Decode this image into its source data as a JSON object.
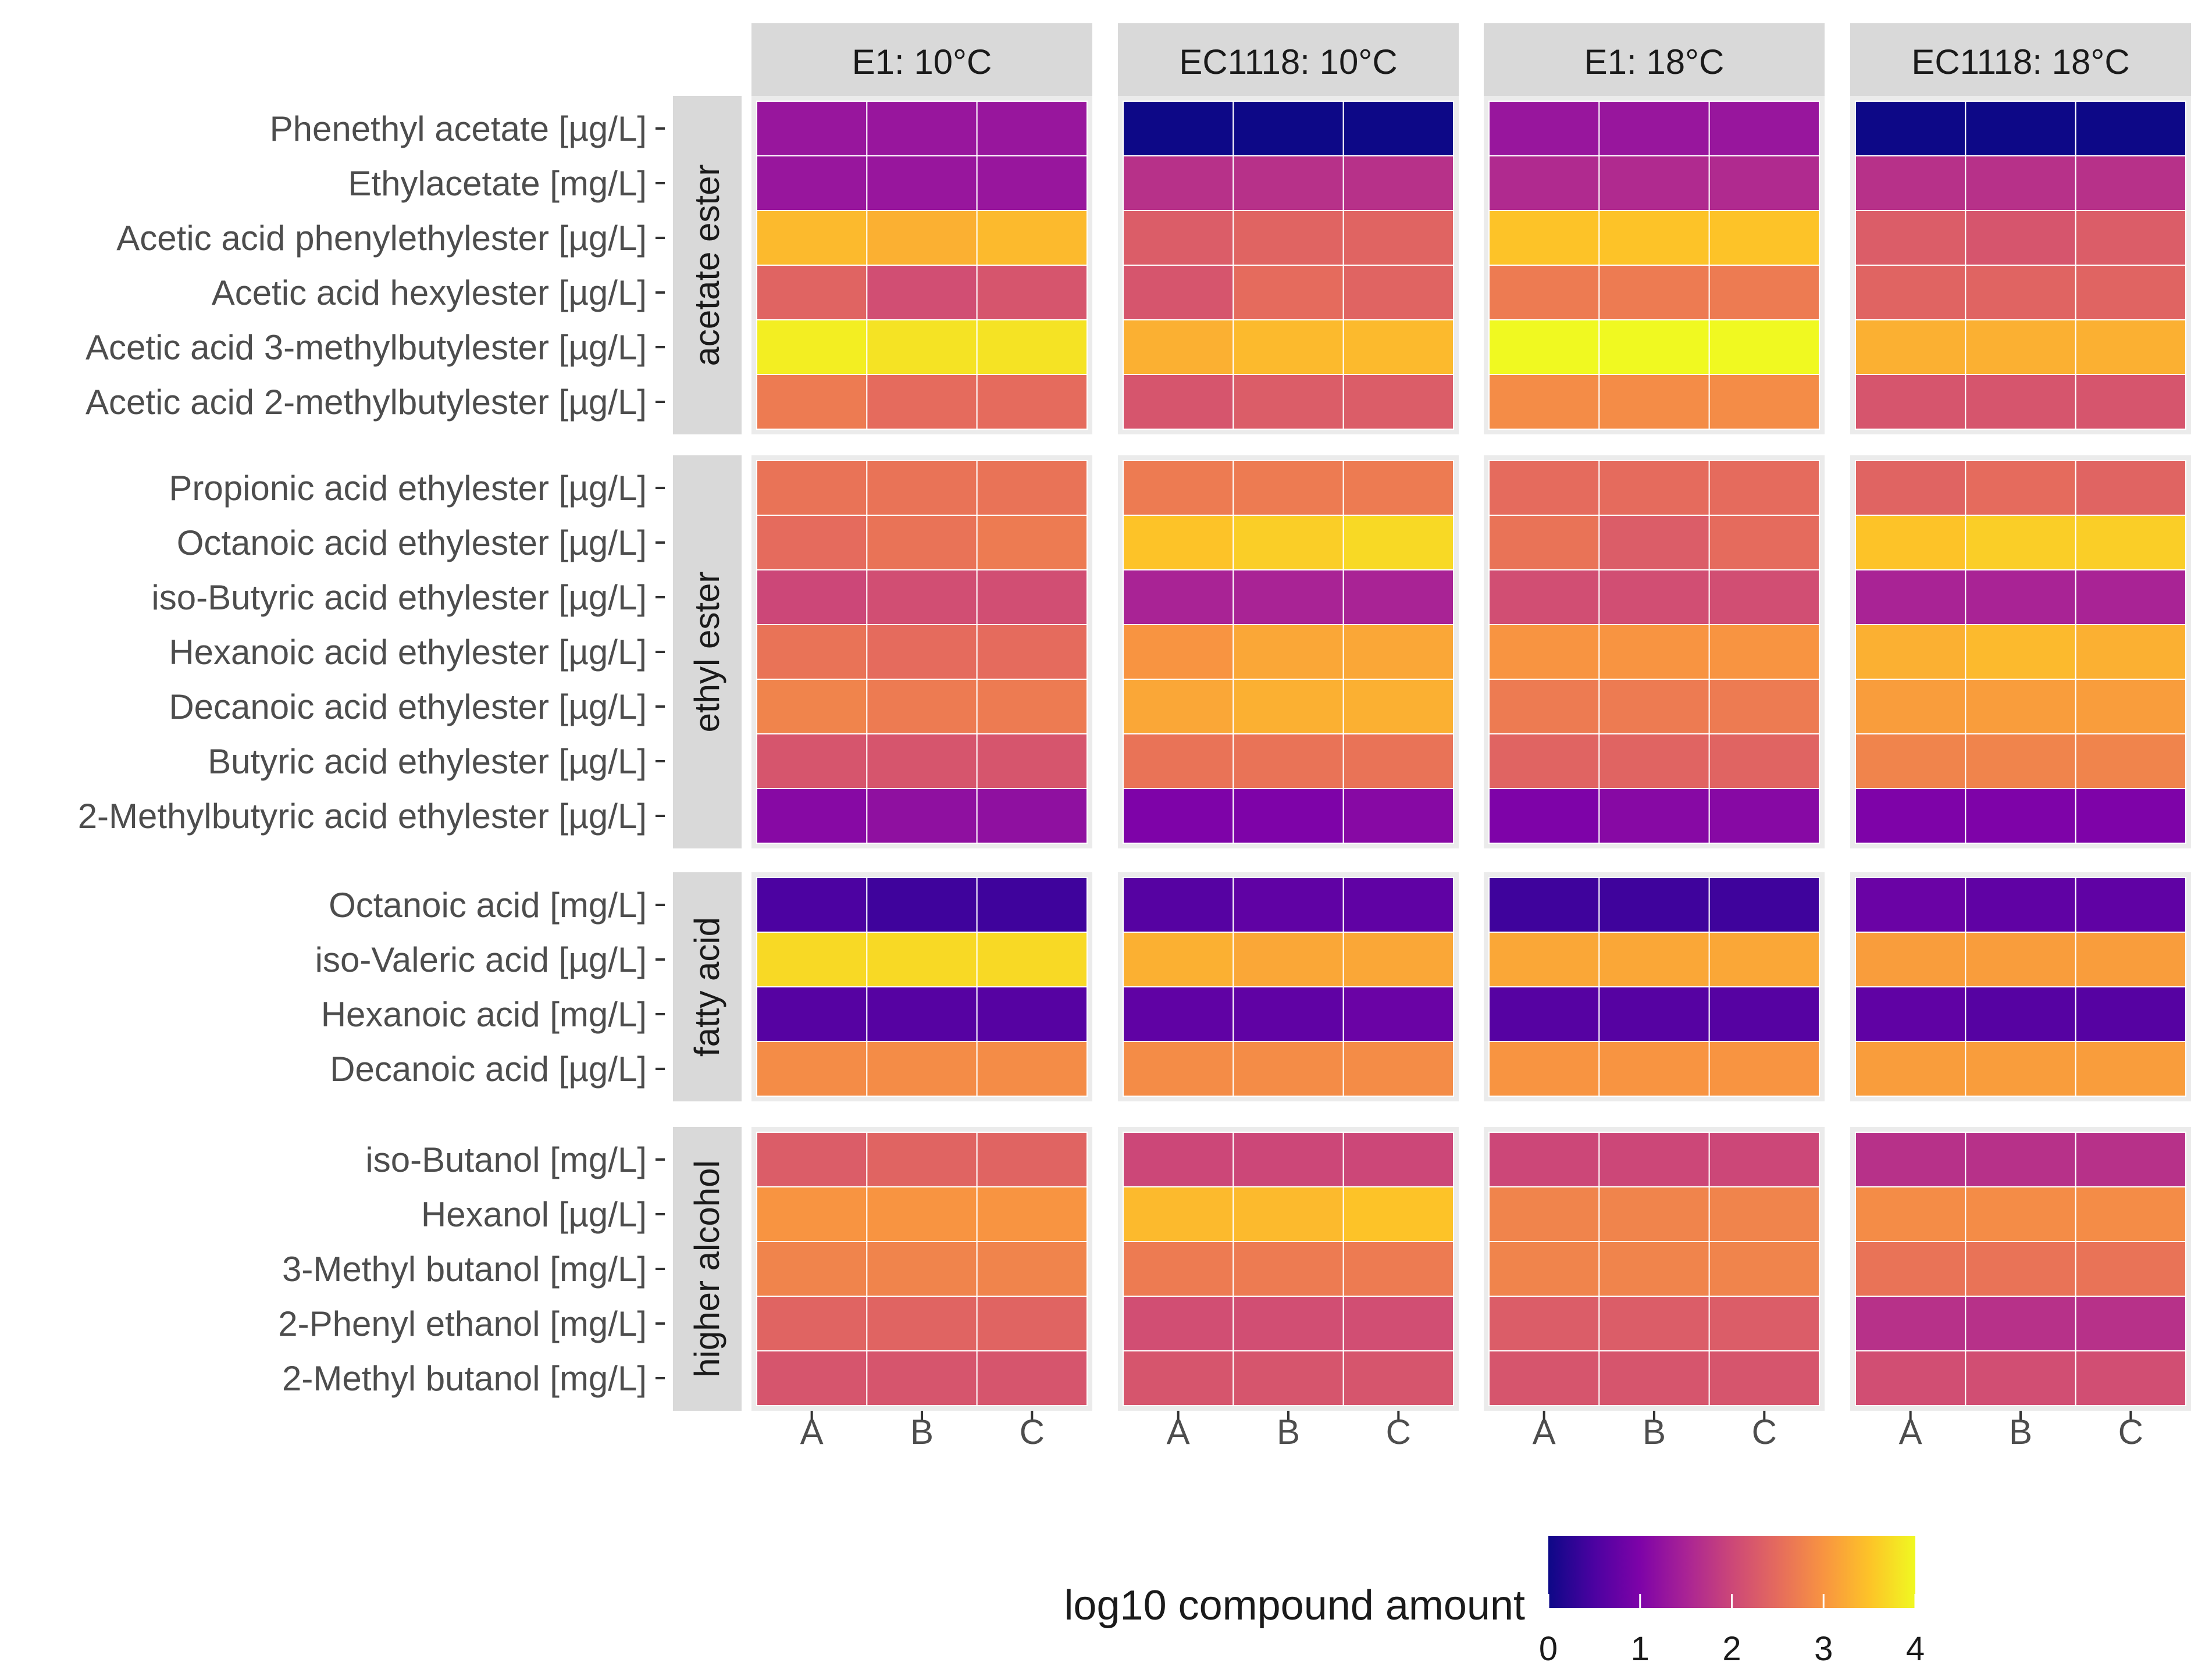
{
  "chart_data": {
    "type": "heatmap",
    "colorscale": "plasma",
    "legend": {
      "title": "log10 compound amount",
      "range": [
        0,
        4
      ],
      "ticks": [
        "0",
        "1",
        "2",
        "3",
        "4"
      ],
      "position": "bottom"
    },
    "columns": [
      "A",
      "B",
      "C"
    ],
    "facet_columns": [
      {
        "label": "E1: 10°C"
      },
      {
        "label": "EC1118: 10°C"
      },
      {
        "label": "E1: 18°C"
      },
      {
        "label": "EC1118: 18°C"
      }
    ],
    "groups": [
      {
        "label": "acetate ester",
        "rows": [
          {
            "label": "Phenethyl acetate [µg/L]",
            "values": [
              [
                1.3,
                1.3,
                1.3
              ],
              [
                0.0,
                0.0,
                0.0
              ],
              [
                1.3,
                1.3,
                1.3
              ],
              [
                0.0,
                0.0,
                0.0
              ]
            ]
          },
          {
            "label": "Ethylacetate [mg/L]",
            "values": [
              [
                1.3,
                1.3,
                1.3
              ],
              [
                1.7,
                1.7,
                1.7
              ],
              [
                1.6,
                1.6,
                1.6
              ],
              [
                1.7,
                1.7,
                1.7
              ]
            ]
          },
          {
            "label": "Acetic acid phenylethylester [µg/L]",
            "values": [
              [
                3.4,
                3.3,
                3.4
              ],
              [
                2.3,
                2.4,
                2.4
              ],
              [
                3.5,
                3.5,
                3.5
              ],
              [
                2.3,
                2.2,
                2.3
              ]
            ]
          },
          {
            "label": "Acetic acid hexylester [µg/L]",
            "values": [
              [
                2.4,
                2.1,
                2.2
              ],
              [
                2.2,
                2.5,
                2.4
              ],
              [
                2.7,
                2.7,
                2.7
              ],
              [
                2.4,
                2.4,
                2.4
              ]
            ]
          },
          {
            "label": "Acetic acid 3-methylbutylester [µg/L]",
            "values": [
              [
                3.9,
                3.8,
                3.8
              ],
              [
                3.3,
                3.4,
                3.4
              ],
              [
                4.0,
                4.0,
                4.0
              ],
              [
                3.3,
                3.3,
                3.3
              ]
            ]
          },
          {
            "label": "Acetic acid 2-methylbutylester [µg/L]",
            "values": [
              [
                2.7,
                2.5,
                2.5
              ],
              [
                2.2,
                2.3,
                2.3
              ],
              [
                2.9,
                2.9,
                2.9
              ],
              [
                2.2,
                2.2,
                2.2
              ]
            ]
          }
        ]
      },
      {
        "label": "ethyl ester",
        "rows": [
          {
            "label": "Propionic acid ethylester [µg/L]",
            "values": [
              [
                2.6,
                2.6,
                2.6
              ],
              [
                2.7,
                2.7,
                2.7
              ],
              [
                2.5,
                2.5,
                2.5
              ],
              [
                2.4,
                2.5,
                2.4
              ]
            ]
          },
          {
            "label": "Octanoic acid ethylester [µg/L]",
            "values": [
              [
                2.5,
                2.6,
                2.7
              ],
              [
                3.5,
                3.6,
                3.7
              ],
              [
                2.6,
                2.3,
                2.5
              ],
              [
                3.5,
                3.6,
                3.6
              ]
            ]
          },
          {
            "label": "iso-Butyric acid ethylester [µg/L]",
            "values": [
              [
                2.0,
                2.1,
                2.1
              ],
              [
                1.5,
                1.5,
                1.5
              ],
              [
                2.1,
                2.1,
                2.1
              ],
              [
                1.5,
                1.5,
                1.5
              ]
            ]
          },
          {
            "label": "Hexanoic acid ethylester [µg/L]",
            "values": [
              [
                2.6,
                2.5,
                2.5
              ],
              [
                3.0,
                3.2,
                3.2
              ],
              [
                3.0,
                3.0,
                3.0
              ],
              [
                3.3,
                3.4,
                3.3
              ]
            ]
          },
          {
            "label": "Decanoic acid ethylester [µg/L]",
            "values": [
              [
                2.8,
                2.7,
                2.7
              ],
              [
                3.2,
                3.3,
                3.3
              ],
              [
                2.7,
                2.7,
                2.7
              ],
              [
                3.1,
                3.1,
                3.1
              ]
            ]
          },
          {
            "label": "Butyric acid ethylester [µg/L]",
            "values": [
              [
                2.2,
                2.2,
                2.2
              ],
              [
                2.6,
                2.6,
                2.6
              ],
              [
                2.4,
                2.4,
                2.4
              ],
              [
                2.8,
                2.8,
                2.8
              ]
            ]
          },
          {
            "label": "2-Methylbutyric acid ethylester [µg/L]",
            "values": [
              [
                1.1,
                1.2,
                1.2
              ],
              [
                1.0,
                1.0,
                1.1
              ],
              [
                1.0,
                1.1,
                1.1
              ],
              [
                1.0,
                1.0,
                1.0
              ]
            ]
          }
        ]
      },
      {
        "label": "fatty acid",
        "rows": [
          {
            "label": "Octanoic acid [mg/L]",
            "values": [
              [
                0.5,
                0.4,
                0.4
              ],
              [
                0.6,
                0.7,
                0.7
              ],
              [
                0.4,
                0.4,
                0.4
              ],
              [
                0.8,
                0.7,
                0.7
              ]
            ]
          },
          {
            "label": "iso-Valeric acid [µg/L]",
            "values": [
              [
                3.7,
                3.7,
                3.7
              ],
              [
                3.3,
                3.2,
                3.2
              ],
              [
                3.2,
                3.2,
                3.2
              ],
              [
                3.1,
                3.1,
                3.1
              ]
            ]
          },
          {
            "label": "Hexanoic acid [mg/L]",
            "values": [
              [
                0.6,
                0.6,
                0.6
              ],
              [
                0.7,
                0.7,
                0.8
              ],
              [
                0.6,
                0.6,
                0.6
              ],
              [
                0.7,
                0.6,
                0.6
              ]
            ]
          },
          {
            "label": "Decanoic acid [µg/L]",
            "values": [
              [
                2.9,
                2.9,
                2.9
              ],
              [
                2.9,
                2.9,
                2.9
              ],
              [
                3.0,
                3.0,
                3.0
              ],
              [
                3.1,
                3.1,
                3.1
              ]
            ]
          }
        ]
      },
      {
        "label": "higher alcohol",
        "rows": [
          {
            "label": "iso-Butanol [mg/L]",
            "values": [
              [
                2.3,
                2.4,
                2.4
              ],
              [
                2.0,
                2.0,
                2.0
              ],
              [
                2.0,
                2.0,
                2.0
              ],
              [
                1.7,
                1.7,
                1.7
              ]
            ]
          },
          {
            "label": "Hexanol [µg/L]",
            "values": [
              [
                3.0,
                3.0,
                3.0
              ],
              [
                3.4,
                3.4,
                3.5
              ],
              [
                2.8,
                2.8,
                2.8
              ],
              [
                2.9,
                2.9,
                2.9
              ]
            ]
          },
          {
            "label": "3-Methyl butanol [mg/L]",
            "values": [
              [
                2.8,
                2.8,
                2.8
              ],
              [
                2.7,
                2.7,
                2.7
              ],
              [
                2.8,
                2.8,
                2.8
              ],
              [
                2.6,
                2.6,
                2.6
              ]
            ]
          },
          {
            "label": "2-Phenyl ethanol [mg/L]",
            "values": [
              [
                2.4,
                2.4,
                2.4
              ],
              [
                2.1,
                2.1,
                2.1
              ],
              [
                2.3,
                2.3,
                2.3
              ],
              [
                1.7,
                1.7,
                1.7
              ]
            ]
          },
          {
            "label": "2-Methyl butanol [mg/L]",
            "values": [
              [
                2.2,
                2.2,
                2.2
              ],
              [
                2.2,
                2.2,
                2.2
              ],
              [
                2.2,
                2.2,
                2.2
              ],
              [
                2.1,
                2.1,
                2.1
              ]
            ]
          }
        ]
      }
    ]
  }
}
